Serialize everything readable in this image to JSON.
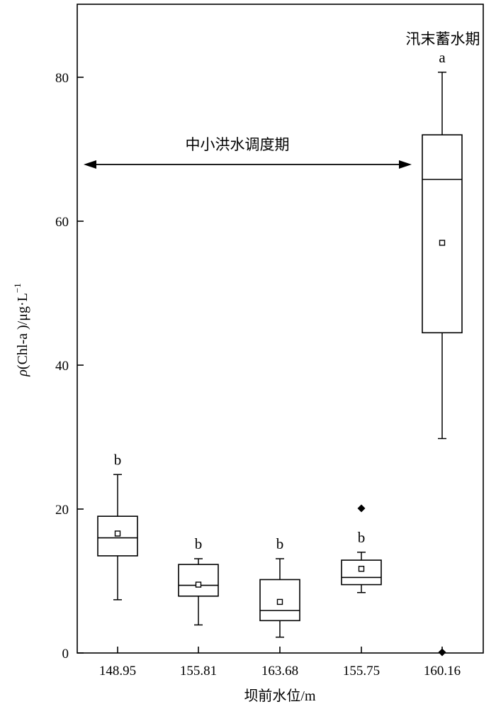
{
  "chart_data": {
    "type": "box",
    "xlabel": "坝前水位/m",
    "ylabel_prefix": "ρ",
    "ylabel_main": "(Chl-a )/μg·L",
    "ylabel_sup": "−1",
    "categories": [
      "148.95",
      "155.81",
      "163.68",
      "155.75",
      "160.16"
    ],
    "ylim": [
      0,
      90
    ],
    "yticks": [
      "0",
      "20",
      "40",
      "60",
      "80"
    ],
    "series": [
      {
        "category": "148.95",
        "whisker_low": 7.4,
        "q1": 13.5,
        "median": 16.0,
        "q3": 19.0,
        "whisker_high": 24.8,
        "mean": 16.6,
        "outliers": [],
        "significance": "b"
      },
      {
        "category": "155.81",
        "whisker_low": 3.9,
        "q1": 7.9,
        "median": 9.4,
        "q3": 12.3,
        "whisker_high": 13.1,
        "mean": 9.5,
        "outliers": [],
        "significance": "b"
      },
      {
        "category": "163.68",
        "whisker_low": 2.2,
        "q1": 4.5,
        "median": 5.9,
        "q3": 10.2,
        "whisker_high": 13.1,
        "mean": 7.1,
        "outliers": [],
        "significance": "b"
      },
      {
        "category": "155.75",
        "whisker_low": 8.4,
        "q1": 9.5,
        "median": 10.5,
        "q3": 12.9,
        "whisker_high": 14.0,
        "mean": 11.7,
        "outliers": [
          20.1
        ],
        "significance": "b"
      },
      {
        "category": "160.16",
        "whisker_low": 29.8,
        "q1": 44.5,
        "median": 65.8,
        "q3": 72.0,
        "whisker_high": 80.7,
        "mean": 57.0,
        "outliers": [
          0.1
        ],
        "significance": "a"
      }
    ],
    "annotations": {
      "period_flood": "中小洪水调度期",
      "period_storage": "汛末蓄水期"
    }
  }
}
